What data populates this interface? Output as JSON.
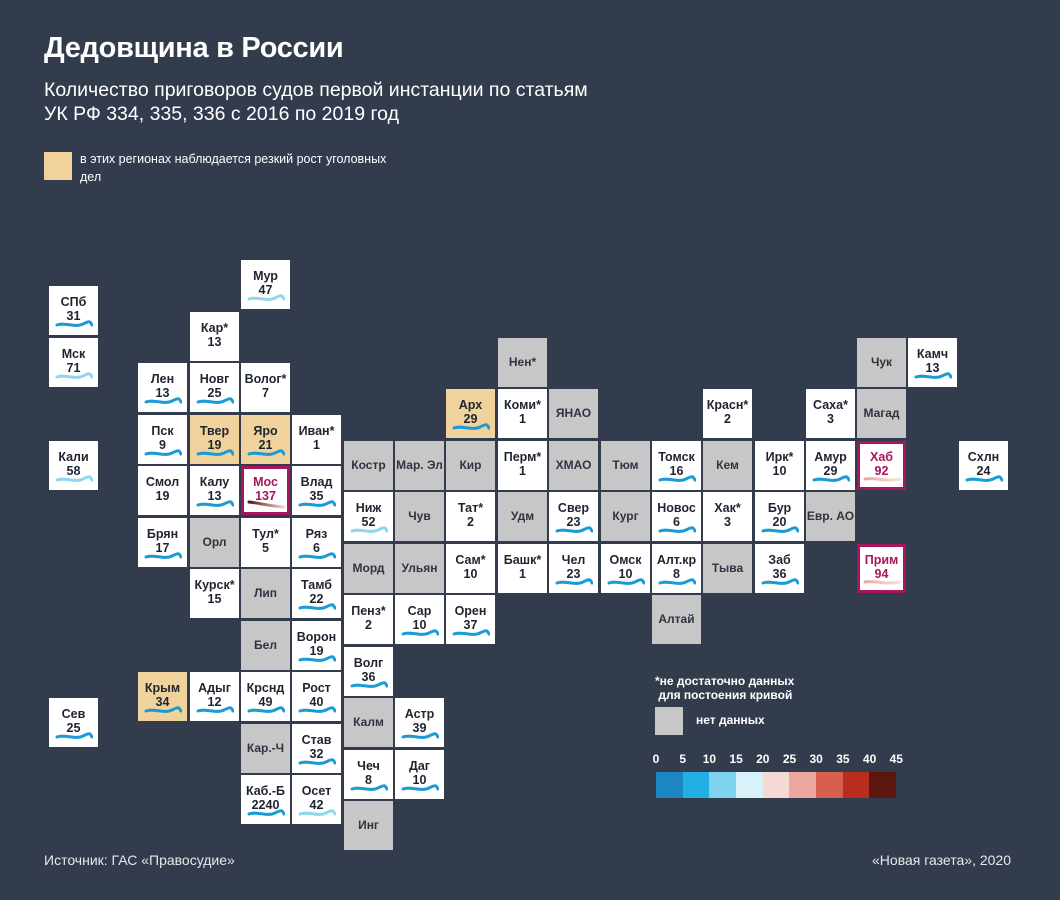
{
  "title": "Дедовщина в России",
  "subtitle": "Количество приговоров судов первой инстанции по статьям УК РФ 334, 335, 336 с 2016 по 2019 год",
  "legend_highlight": "в этих регионах наблюдается резкий рост уголовных дел",
  "no_data_note": "*не достаточно данных\n для постоения кривой",
  "no_data_label": "нет данных",
  "scale_ticks": [
    "0",
    "5",
    "10",
    "15",
    "20",
    "25",
    "30",
    "35",
    "40",
    "45"
  ],
  "scale_colors": [
    "#1b86c2",
    "#22b0e4",
    "#7fd3ef",
    "#d9f1f8",
    "#f5d9d3",
    "#eba69e",
    "#d6604d",
    "#b72d1e",
    "#5a160f"
  ],
  "colors": {
    "background": "#333c4d",
    "highlight": "#f0d39c",
    "marked_border": "#a8155d",
    "no_data": "#c7c7c7"
  },
  "source": "Источник: ГАС «Правосудие»",
  "credit": "«Новая газета», 2020",
  "regions": [
    {
      "abbr": "СПб",
      "value": "31",
      "col": 0,
      "row": 0,
      "type": "d",
      "curve": "b"
    },
    {
      "abbr": "Мск",
      "value": "71",
      "col": 0,
      "row": 1,
      "type": "d",
      "curve": "l"
    },
    {
      "abbr": "Кали",
      "value": "58",
      "col": 0,
      "row": 3,
      "type": "d",
      "curve": "l"
    },
    {
      "abbr": "Сев",
      "value": "25",
      "col": 0,
      "row": 8,
      "type": "d",
      "curve": "b"
    },
    {
      "abbr": "Мур",
      "value": "47",
      "col": 4,
      "row": -0.5,
      "type": "d",
      "curve": "l"
    },
    {
      "abbr": "Кар*",
      "value": "13",
      "col": 3,
      "row": 0.5,
      "type": "d",
      "curve": ""
    },
    {
      "abbr": "Лен",
      "value": "13",
      "col": 2,
      "row": 1.5,
      "type": "d",
      "curve": "b"
    },
    {
      "abbr": "Новг",
      "value": "25",
      "col": 3,
      "row": 1.5,
      "type": "d",
      "curve": "b"
    },
    {
      "abbr": "Волог*",
      "value": "7",
      "col": 4,
      "row": 1.5,
      "type": "d",
      "curve": ""
    },
    {
      "abbr": "Пск",
      "value": "9",
      "col": 2,
      "row": 2.5,
      "type": "d",
      "curve": "b"
    },
    {
      "abbr": "Твер",
      "value": "19",
      "col": 3,
      "row": 2.5,
      "type": "h",
      "curve": "b"
    },
    {
      "abbr": "Яро",
      "value": "21",
      "col": 4,
      "row": 2.5,
      "type": "h",
      "curve": "b"
    },
    {
      "abbr": "Иван*",
      "value": "1",
      "col": 5,
      "row": 2.5,
      "type": "d",
      "curve": ""
    },
    {
      "abbr": "Смол",
      "value": "19",
      "col": 2,
      "row": 3.5,
      "type": "d",
      "curve": ""
    },
    {
      "abbr": "Калу",
      "value": "13",
      "col": 3,
      "row": 3.5,
      "type": "d",
      "curve": "b"
    },
    {
      "abbr": "Мос",
      "value": "137",
      "col": 4,
      "row": 3.5,
      "type": "m",
      "curve": "r"
    },
    {
      "abbr": "Влад",
      "value": "35",
      "col": 5,
      "row": 3.5,
      "type": "d",
      "curve": "b"
    },
    {
      "abbr": "Брян",
      "value": "17",
      "col": 2,
      "row": 4.5,
      "type": "d",
      "curve": "b"
    },
    {
      "abbr": "Орл",
      "value": "",
      "col": 3,
      "row": 4.5,
      "type": "n",
      "curve": ""
    },
    {
      "abbr": "Тул*",
      "value": "5",
      "col": 4,
      "row": 4.5,
      "type": "d",
      "curve": ""
    },
    {
      "abbr": "Ряз",
      "value": "6",
      "col": 5,
      "row": 4.5,
      "type": "d",
      "curve": "b"
    },
    {
      "abbr": "Курск*",
      "value": "15",
      "col": 3,
      "row": 5.5,
      "type": "d",
      "curve": ""
    },
    {
      "abbr": "Лип",
      "value": "",
      "col": 4,
      "row": 5.5,
      "type": "n",
      "curve": ""
    },
    {
      "abbr": "Тамб",
      "value": "22",
      "col": 5,
      "row": 5.5,
      "type": "d",
      "curve": "b"
    },
    {
      "abbr": "Бел",
      "value": "",
      "col": 4,
      "row": 6.5,
      "type": "n",
      "curve": ""
    },
    {
      "abbr": "Ворон",
      "value": "19",
      "col": 5,
      "row": 6.5,
      "type": "d",
      "curve": "b"
    },
    {
      "abbr": "Крым",
      "value": "34",
      "col": 2,
      "row": 7.5,
      "type": "h",
      "curve": "b"
    },
    {
      "abbr": "Адыг",
      "value": "12",
      "col": 3,
      "row": 7.5,
      "type": "d",
      "curve": "b"
    },
    {
      "abbr": "Крснд",
      "value": "49",
      "col": 4,
      "row": 7.5,
      "type": "d",
      "curve": "b"
    },
    {
      "abbr": "Рост",
      "value": "40",
      "col": 5,
      "row": 7.5,
      "type": "d",
      "curve": "b"
    },
    {
      "abbr": "Кар.-Ч",
      "value": "",
      "col": 4,
      "row": 8.5,
      "type": "n",
      "curve": ""
    },
    {
      "abbr": "Став",
      "value": "32",
      "col": 5,
      "row": 8.5,
      "type": "d",
      "curve": "b"
    },
    {
      "abbr": "Каб.-Б",
      "value": "2240",
      "col": 4,
      "row": 9.5,
      "type": "d",
      "curve": "b"
    },
    {
      "abbr": "Осет",
      "value": "42",
      "col": 5,
      "row": 9.5,
      "type": "d",
      "curve": "l"
    },
    {
      "abbr": "Костр",
      "value": "",
      "col": 6,
      "row": 3,
      "type": "n",
      "curve": ""
    },
    {
      "abbr": "Ниж",
      "value": "52",
      "col": 6,
      "row": 4,
      "type": "d",
      "curve": "l"
    },
    {
      "abbr": "Морд",
      "value": "",
      "col": 6,
      "row": 5,
      "type": "n",
      "curve": ""
    },
    {
      "abbr": "Пенз*",
      "value": "2",
      "col": 6,
      "row": 6,
      "type": "d",
      "curve": ""
    },
    {
      "abbr": "Волг",
      "value": "36",
      "col": 6,
      "row": 7,
      "type": "d",
      "curve": "b"
    },
    {
      "abbr": "Калм",
      "value": "",
      "col": 6,
      "row": 8,
      "type": "n",
      "curve": ""
    },
    {
      "abbr": "Чеч",
      "value": "8",
      "col": 6,
      "row": 9,
      "type": "d",
      "curve": "b"
    },
    {
      "abbr": "Инг",
      "value": "",
      "col": 6,
      "row": 10,
      "type": "n",
      "curve": ""
    },
    {
      "abbr": "Мар. Эл",
      "value": "",
      "col": 7,
      "row": 3,
      "type": "n",
      "curve": ""
    },
    {
      "abbr": "Чув",
      "value": "",
      "col": 7,
      "row": 4,
      "type": "n",
      "curve": ""
    },
    {
      "abbr": "Ульян",
      "value": "",
      "col": 7,
      "row": 5,
      "type": "n",
      "curve": ""
    },
    {
      "abbr": "Сар",
      "value": "10",
      "col": 7,
      "row": 6,
      "type": "d",
      "curve": "b"
    },
    {
      "abbr": "Астр",
      "value": "39",
      "col": 7,
      "row": 8,
      "type": "d",
      "curve": "b"
    },
    {
      "abbr": "Даг",
      "value": "10",
      "col": 7,
      "row": 9,
      "type": "d",
      "curve": "b"
    },
    {
      "abbr": "Арх",
      "value": "29",
      "col": 8,
      "row": 2,
      "type": "h",
      "curve": "b"
    },
    {
      "abbr": "Кир",
      "value": "",
      "col": 8,
      "row": 3,
      "type": "n",
      "curve": ""
    },
    {
      "abbr": "Тат*",
      "value": "2",
      "col": 8,
      "row": 4,
      "type": "d",
      "curve": ""
    },
    {
      "abbr": "Сам*",
      "value": "10",
      "col": 8,
      "row": 5,
      "type": "d",
      "curve": ""
    },
    {
      "abbr": "Орен",
      "value": "37",
      "col": 8,
      "row": 6,
      "type": "d",
      "curve": "b"
    },
    {
      "abbr": "Нен*",
      "value": "",
      "col": 9,
      "row": 1,
      "type": "n",
      "curve": ""
    },
    {
      "abbr": "Коми*",
      "value": "1",
      "col": 9,
      "row": 2,
      "type": "d",
      "curve": ""
    },
    {
      "abbr": "Перм*",
      "value": "1",
      "col": 9,
      "row": 3,
      "type": "d",
      "curve": ""
    },
    {
      "abbr": "Удм",
      "value": "",
      "col": 9,
      "row": 4,
      "type": "n",
      "curve": ""
    },
    {
      "abbr": "Башк*",
      "value": "1",
      "col": 9,
      "row": 5,
      "type": "d",
      "curve": ""
    },
    {
      "abbr": "ЯНАО",
      "value": "",
      "col": 10,
      "row": 2,
      "type": "n",
      "curve": ""
    },
    {
      "abbr": "ХМАО",
      "value": "",
      "col": 10,
      "row": 3,
      "type": "n",
      "curve": ""
    },
    {
      "abbr": "Свер",
      "value": "23",
      "col": 10,
      "row": 4,
      "type": "d",
      "curve": "b"
    },
    {
      "abbr": "Чел",
      "value": "23",
      "col": 10,
      "row": 5,
      "type": "d",
      "curve": "b"
    },
    {
      "abbr": "Тюм",
      "value": "",
      "col": 11,
      "row": 3,
      "type": "n",
      "curve": ""
    },
    {
      "abbr": "Кург",
      "value": "",
      "col": 11,
      "row": 4,
      "type": "n",
      "curve": ""
    },
    {
      "abbr": "Омск",
      "value": "10",
      "col": 11,
      "row": 5,
      "type": "d",
      "curve": "b"
    },
    {
      "abbr": "Томск",
      "value": "16",
      "col": 12,
      "row": 3,
      "type": "d",
      "curve": "b"
    },
    {
      "abbr": "Новос",
      "value": "6",
      "col": 12,
      "row": 4,
      "type": "d",
      "curve": "b"
    },
    {
      "abbr": "Алт.кр",
      "value": "8",
      "col": 12,
      "row": 5,
      "type": "d",
      "curve": "b"
    },
    {
      "abbr": "Алтай",
      "value": "",
      "col": 12,
      "row": 6,
      "type": "n",
      "curve": ""
    },
    {
      "abbr": "Красн*",
      "value": "2",
      "col": 13,
      "row": 2,
      "type": "d",
      "curve": ""
    },
    {
      "abbr": "Кем",
      "value": "",
      "col": 13,
      "row": 3,
      "type": "n",
      "curve": ""
    },
    {
      "abbr": "Хак*",
      "value": "3",
      "col": 13,
      "row": 4,
      "type": "d",
      "curve": ""
    },
    {
      "abbr": "Тыва",
      "value": "",
      "col": 13,
      "row": 5,
      "type": "n",
      "curve": ""
    },
    {
      "abbr": "Ирк*",
      "value": "10",
      "col": 14,
      "row": 3,
      "type": "d",
      "curve": ""
    },
    {
      "abbr": "Бур",
      "value": "20",
      "col": 14,
      "row": 4,
      "type": "d",
      "curve": "b"
    },
    {
      "abbr": "Заб",
      "value": "36",
      "col": 14,
      "row": 5,
      "type": "d",
      "curve": "b"
    },
    {
      "abbr": "Саха*",
      "value": "3",
      "col": 15,
      "row": 2,
      "type": "d",
      "curve": ""
    },
    {
      "abbr": "Амур",
      "value": "29",
      "col": 15,
      "row": 3,
      "type": "d",
      "curve": "b"
    },
    {
      "abbr": "Евр. АО",
      "value": "",
      "col": 15,
      "row": 4,
      "type": "n",
      "curve": ""
    },
    {
      "abbr": "Чук",
      "value": "",
      "col": 16,
      "row": 1,
      "type": "n",
      "curve": ""
    },
    {
      "abbr": "Магад",
      "value": "",
      "col": 16,
      "row": 2,
      "type": "n",
      "curve": ""
    },
    {
      "abbr": "Хаб",
      "value": "92",
      "col": 16,
      "row": 3,
      "type": "m",
      "curve": "p"
    },
    {
      "abbr": "Прим",
      "value": "94",
      "col": 16,
      "row": 5,
      "type": "m",
      "curve": "p"
    },
    {
      "abbr": "Камч",
      "value": "13",
      "col": 17,
      "row": 1,
      "type": "d",
      "curve": "b"
    },
    {
      "abbr": "Схлн",
      "value": "24",
      "col": 18,
      "row": 3,
      "type": "d",
      "curve": "b"
    }
  ]
}
